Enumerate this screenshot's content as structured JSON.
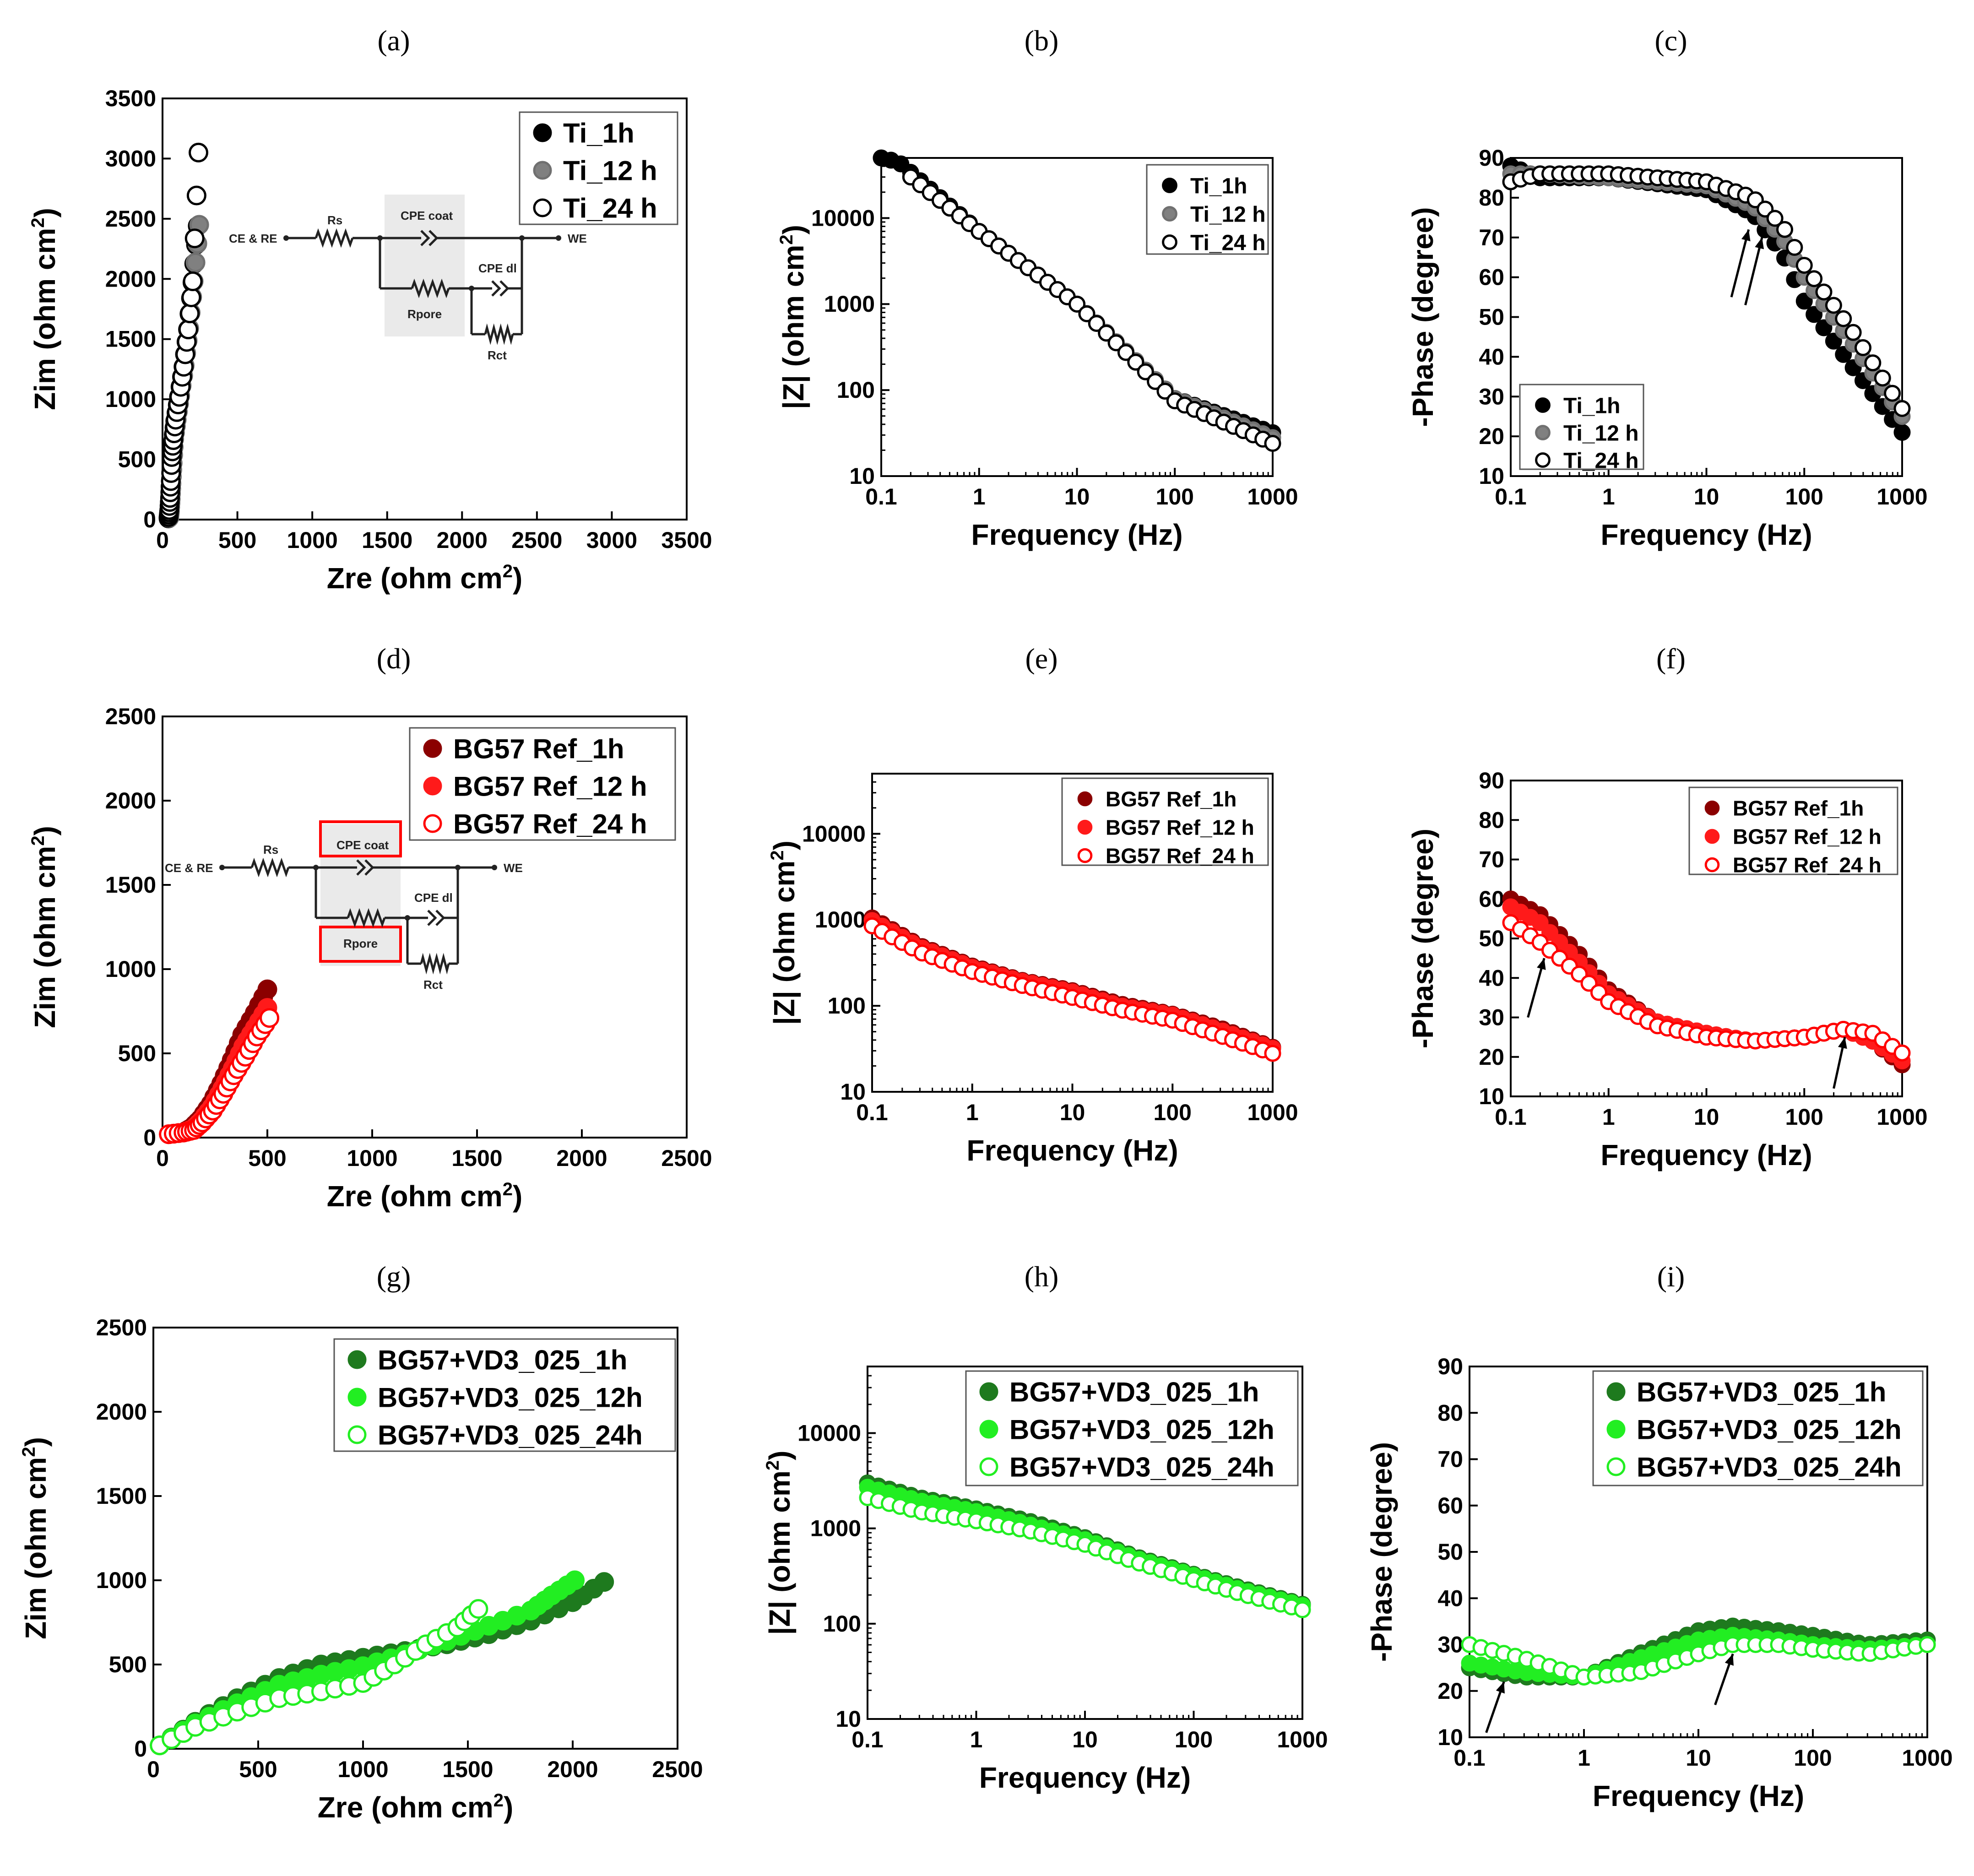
{
  "colors": {
    "ti_1h": "#000000",
    "ti_12h": "#808080",
    "ti_24h": "#ffffff",
    "bg_1h": "#8b0000",
    "bg_12h": "#ff1a1a",
    "bg_24h_edge": "#ff0000",
    "vd_1h": "#1e7a1e",
    "vd_12h": "#22ee22",
    "vd_24h_edge": "#22ee22"
  },
  "circuit_labels": {
    "ce_re": "CE & RE",
    "rs": "Rs",
    "cpe_coat": "CPE coat",
    "rpore": "Rpore",
    "cpe_dl": "CPE dl",
    "rct": "Rct",
    "we": "WE"
  },
  "chart_data": [
    {
      "id": "a",
      "panel_label": "(a)",
      "type": "scatter",
      "plot": "nyquist",
      "xlabel": "Zre (ohm cm",
      "ylabel": "Zim (ohm cm",
      "unit_sup": "2",
      "xlim": [
        0,
        3500
      ],
      "ylim": [
        0,
        3500
      ],
      "xticks": [
        "0",
        "500",
        "1000",
        "1500",
        "2000",
        "2500",
        "3000",
        "3500"
      ],
      "yticks": [
        "0",
        "500",
        "1000",
        "1500",
        "2000",
        "2500",
        "3000",
        "3500"
      ],
      "legend": [
        "Ti_1h",
        "Ti_12 h",
        "Ti_24 h"
      ],
      "series": [
        {
          "name": "Ti_1h",
          "x": [
            40,
            45,
            50,
            55,
            60,
            70,
            85,
            110,
            140,
            170,
            200,
            235
          ],
          "y": [
            10,
            60,
            150,
            280,
            450,
            650,
            820,
            1020,
            1270,
            1580,
            1970,
            2440
          ]
        },
        {
          "name": "Ti_12 h",
          "x": [
            45,
            50,
            55,
            60,
            68,
            78,
            95,
            118,
            148,
            178,
            208,
            245
          ],
          "y": [
            15,
            70,
            170,
            300,
            470,
            670,
            830,
            1030,
            1280,
            1590,
            1980,
            2450
          ]
        },
        {
          "name": "Ti_24 h",
          "x": [
            40,
            45,
            50,
            55,
            62,
            72,
            88,
            112,
            142,
            172,
            202,
            240
          ],
          "y": [
            20,
            80,
            180,
            320,
            520,
            660,
            830,
            1020,
            1270,
            1580,
            1980,
            3050
          ]
        }
      ]
    },
    {
      "id": "b",
      "panel_label": "(b)",
      "type": "scatter",
      "plot": "bode_mod",
      "xlabel": "Frequency (Hz)",
      "ylabel": "|Z| (ohm cm",
      "unit_sup": "2",
      "xlim": [
        0.1,
        1000
      ],
      "ylim": [
        10,
        50000
      ],
      "xticks": [
        "0.1",
        "1",
        "10",
        "100",
        "1000"
      ],
      "yticks": [
        "10",
        "100",
        "1000",
        "10000"
      ],
      "legend": [
        "Ti_1h",
        "Ti_12 h",
        "Ti_24 h"
      ],
      "series": [
        {
          "name": "Ti_1h",
          "x": [
            0.1,
            0.15,
            1,
            10,
            100,
            1000
          ],
          "y": [
            50000,
            45000,
            7000,
            1000,
            80,
            32
          ]
        },
        {
          "name": "Ti_12 h",
          "x": [
            0.2,
            1,
            10,
            100,
            1000
          ],
          "y": [
            30000,
            7000,
            1000,
            80,
            28
          ]
        },
        {
          "name": "Ti_24 h",
          "x": [
            0.2,
            1,
            10,
            100,
            1000
          ],
          "y": [
            30000,
            7000,
            1000,
            75,
            24
          ]
        }
      ]
    },
    {
      "id": "c",
      "panel_label": "(c)",
      "type": "scatter",
      "plot": "bode_phase",
      "xlabel": "Frequency (Hz)",
      "ylabel": "-Phase (degree)",
      "xlim": [
        0.1,
        1000
      ],
      "ylim": [
        10,
        90
      ],
      "xticks": [
        "0.1",
        "1",
        "10",
        "100",
        "1000"
      ],
      "yticks": [
        "10",
        "20",
        "30",
        "40",
        "50",
        "60",
        "70",
        "80",
        "90"
      ],
      "legend": [
        "Ti_1h",
        "Ti_12 h",
        "Ti_24 h"
      ],
      "series": [
        {
          "name": "Ti_1h",
          "x": [
            0.1,
            0.2,
            1,
            10,
            30,
            60,
            100,
            300,
            1000
          ],
          "y": [
            88,
            85,
            85,
            82,
            76,
            66,
            54,
            38,
            21
          ]
        },
        {
          "name": "Ti_12 h",
          "x": [
            0.1,
            0.2,
            1,
            10,
            30,
            60,
            100,
            300,
            1000
          ],
          "y": [
            86,
            86,
            85,
            83,
            78,
            70,
            60,
            44,
            25
          ]
        },
        {
          "name": "Ti_24 h",
          "x": [
            0.1,
            0.2,
            1,
            10,
            30,
            60,
            100,
            300,
            1000
          ],
          "y": [
            84,
            86,
            86,
            84,
            80,
            73,
            63,
            47,
            27
          ]
        }
      ]
    },
    {
      "id": "d",
      "panel_label": "(d)",
      "type": "scatter",
      "plot": "nyquist",
      "xlabel": "Zre (ohm cm",
      "ylabel": "Zim (ohm cm",
      "unit_sup": "2",
      "xlim": [
        0,
        2500
      ],
      "ylim": [
        0,
        2500
      ],
      "xticks": [
        "0",
        "500",
        "1000",
        "1500",
        "2000",
        "2500"
      ],
      "yticks": [
        "0",
        "500",
        "1000",
        "1500",
        "2000",
        "2500"
      ],
      "legend": [
        "BG57 Ref_1h",
        "BG57 Ref_12 h",
        "BG57 Ref_24 h"
      ],
      "series": [
        {
          "name": "BG57 Ref_1h",
          "x": [
            30,
            100,
            140,
            180,
            230,
            280,
            330,
            380,
            440,
            500
          ],
          "y": [
            20,
            30,
            60,
            110,
            200,
            320,
            460,
            610,
            740,
            880
          ]
        },
        {
          "name": "BG57 Ref_12 h",
          "x": [
            30,
            100,
            145,
            185,
            235,
            285,
            335,
            385,
            440,
            500
          ],
          "y": [
            20,
            30,
            50,
            100,
            180,
            290,
            410,
            540,
            650,
            770
          ]
        },
        {
          "name": "BG57 Ref_24 h",
          "x": [
            30,
            100,
            150,
            190,
            240,
            290,
            340,
            395,
            450,
            510
          ],
          "y": [
            20,
            30,
            45,
            90,
            160,
            260,
            370,
            480,
            600,
            710
          ]
        }
      ]
    },
    {
      "id": "e",
      "panel_label": "(e)",
      "type": "scatter",
      "plot": "bode_mod",
      "xlabel": "Frequency (Hz)",
      "ylabel": "|Z| (ohm cm",
      "unit_sup": "2",
      "xlim": [
        0.1,
        1000
      ],
      "ylim": [
        10,
        50000
      ],
      "xticks": [
        "0.1",
        "1",
        "10",
        "100",
        "1000"
      ],
      "yticks": [
        "10",
        "100",
        "1000",
        "10000"
      ],
      "legend": [
        "BG57 Ref_1h",
        "BG57 Ref_12 h",
        "BG57 Ref_24 h"
      ],
      "series": [
        {
          "name": "BG57 Ref_1h",
          "x": [
            0.1,
            0.3,
            1,
            3,
            10,
            30,
            100,
            300,
            1000
          ],
          "y": [
            1050,
            500,
            290,
            200,
            150,
            105,
            80,
            55,
            33
          ]
        },
        {
          "name": "BG57 Ref_12 h",
          "x": [
            0.1,
            0.3,
            1,
            3,
            10,
            30,
            100,
            300,
            1000
          ],
          "y": [
            980,
            480,
            280,
            195,
            145,
            100,
            78,
            52,
            32
          ]
        },
        {
          "name": "BG57 Ref_24 h",
          "x": [
            0.1,
            0.3,
            1,
            3,
            10,
            30,
            100,
            300,
            1000
          ],
          "y": [
            850,
            420,
            250,
            175,
            125,
            90,
            68,
            45,
            28
          ]
        }
      ]
    },
    {
      "id": "f",
      "panel_label": "(f)",
      "type": "scatter",
      "plot": "bode_phase",
      "xlabel": "Frequency (Hz)",
      "ylabel": "-Phase (degree)",
      "xlim": [
        0.1,
        1000
      ],
      "ylim": [
        10,
        90
      ],
      "xticks": [
        "0.1",
        "1",
        "10",
        "100",
        "1000"
      ],
      "yticks": [
        "10",
        "20",
        "30",
        "40",
        "50",
        "60",
        "70",
        "80",
        "90"
      ],
      "legend": [
        "BG57 Ref_1h",
        "BG57 Ref_12 h",
        "BG57 Ref_24 h"
      ],
      "series": [
        {
          "name": "BG57 Ref_1h",
          "x": [
            0.1,
            0.2,
            0.5,
            1,
            3,
            10,
            30,
            100,
            250,
            500,
            1000
          ],
          "y": [
            60,
            56,
            46,
            37,
            29,
            26,
            24,
            25,
            27,
            24,
            18
          ]
        },
        {
          "name": "BG57 Ref_12 h",
          "x": [
            0.1,
            0.2,
            0.5,
            1,
            3,
            10,
            30,
            100,
            250,
            500,
            1000
          ],
          "y": [
            58,
            54,
            44,
            36,
            29,
            26,
            24,
            25,
            27,
            24,
            19
          ]
        },
        {
          "name": "BG57 Ref_24 h",
          "x": [
            0.1,
            0.2,
            0.5,
            1,
            3,
            10,
            30,
            100,
            250,
            500,
            1000
          ],
          "y": [
            54,
            49,
            41,
            34,
            28,
            25,
            24,
            25,
            27,
            26,
            21
          ]
        }
      ]
    },
    {
      "id": "g",
      "panel_label": "(g)",
      "type": "scatter",
      "plot": "nyquist",
      "xlabel": "Zre (ohm cm",
      "ylabel": "Zim (ohm cm",
      "unit_sup": "2",
      "xlim": [
        0,
        2500
      ],
      "ylim": [
        0,
        2500
      ],
      "xticks": [
        "0",
        "500",
        "1000",
        "1500",
        "2000",
        "2500"
      ],
      "yticks": [
        "0",
        "500",
        "1000",
        "1500",
        "2000",
        "2500"
      ],
      "legend": [
        "BG57+VD3_025_1h",
        "BG57+VD3_025_12h",
        "BG57+VD3_025_24h"
      ],
      "series": [
        {
          "name": "BG57+VD3_025_1h",
          "x": [
            30,
            200,
            400,
            600,
            800,
            1000,
            1200,
            1400,
            1600,
            1800,
            2000,
            2150
          ],
          "y": [
            20,
            160,
            300,
            420,
            500,
            540,
            580,
            620,
            680,
            760,
            870,
            990
          ]
        },
        {
          "name": "BG57+VD3_025_12h",
          "x": [
            30,
            200,
            400,
            600,
            800,
            1000,
            1200,
            1400,
            1600,
            1800,
            1900,
            2010
          ],
          "y": [
            20,
            150,
            270,
            380,
            440,
            490,
            560,
            640,
            730,
            820,
            910,
            1000
          ]
        },
        {
          "name": "BG57+VD3_025_24h",
          "x": [
            30,
            200,
            400,
            600,
            800,
            1000,
            1150,
            1300,
            1450,
            1550
          ],
          "y": [
            20,
            130,
            220,
            300,
            340,
            390,
            500,
            620,
            720,
            830
          ]
        }
      ]
    },
    {
      "id": "h",
      "panel_label": "(h)",
      "type": "scatter",
      "plot": "bode_mod",
      "xlabel": "Frequency (Hz)",
      "ylabel": "|Z| (ohm cm",
      "unit_sup": "2",
      "xlim": [
        0.1,
        1000
      ],
      "ylim": [
        10,
        50000
      ],
      "xticks": [
        "0.1",
        "1",
        "10",
        "100",
        "1000"
      ],
      "yticks": [
        "10",
        "100",
        "1000",
        "10000"
      ],
      "legend": [
        "BG57+VD3_025_1h",
        "BG57+VD3_025_12h",
        "BG57+VD3_025_24h"
      ],
      "series": [
        {
          "name": "BG57+VD3_025_1h",
          "x": [
            0.1,
            0.3,
            1,
            3,
            10,
            30,
            100,
            300,
            1000
          ],
          "y": [
            3000,
            2100,
            1600,
            1200,
            800,
            500,
            330,
            230,
            160
          ]
        },
        {
          "name": "BG57+VD3_025_12h",
          "x": [
            0.1,
            0.3,
            1,
            3,
            10,
            30,
            100,
            300,
            1000
          ],
          "y": [
            2700,
            1950,
            1500,
            1100,
            760,
            480,
            320,
            220,
            155
          ]
        },
        {
          "name": "BG57+VD3_025_24h",
          "x": [
            0.1,
            0.3,
            1,
            3,
            10,
            30,
            100,
            300,
            1000
          ],
          "y": [
            2100,
            1500,
            1200,
            950,
            680,
            440,
            290,
            200,
            140
          ]
        }
      ]
    },
    {
      "id": "i",
      "panel_label": "(i)",
      "type": "scatter",
      "plot": "bode_phase",
      "xlabel": "Frequency (Hz)",
      "ylabel": "-Phase (degree)",
      "xlim": [
        0.1,
        1000
      ],
      "ylim": [
        10,
        90
      ],
      "xticks": [
        "0.1",
        "1",
        "10",
        "100",
        "1000"
      ],
      "yticks": [
        "10",
        "20",
        "30",
        "40",
        "50",
        "60",
        "70",
        "80",
        "90"
      ],
      "legend": [
        "BG57+VD3_025_1h",
        "BG57+VD3_025_12h",
        "BG57+VD3_025_24h"
      ],
      "series": [
        {
          "name": "BG57+VD3_025_1h",
          "x": [
            0.1,
            0.3,
            1,
            3,
            10,
            20,
            50,
            100,
            300,
            1000
          ],
          "y": [
            25,
            23,
            23,
            28,
            33,
            34,
            33,
            32,
            30,
            31
          ]
        },
        {
          "name": "BG57+VD3_025_12h",
          "x": [
            0.1,
            0.3,
            1,
            3,
            10,
            20,
            50,
            100,
            300,
            1000
          ],
          "y": [
            26,
            24,
            23,
            27,
            31,
            32,
            31,
            30,
            29,
            30
          ]
        },
        {
          "name": "BG57+VD3_025_24h",
          "x": [
            0.1,
            0.3,
            1,
            3,
            10,
            20,
            50,
            100,
            300,
            1000
          ],
          "y": [
            30,
            27,
            23,
            24,
            28,
            30,
            30,
            29,
            28,
            30
          ]
        }
      ]
    }
  ]
}
